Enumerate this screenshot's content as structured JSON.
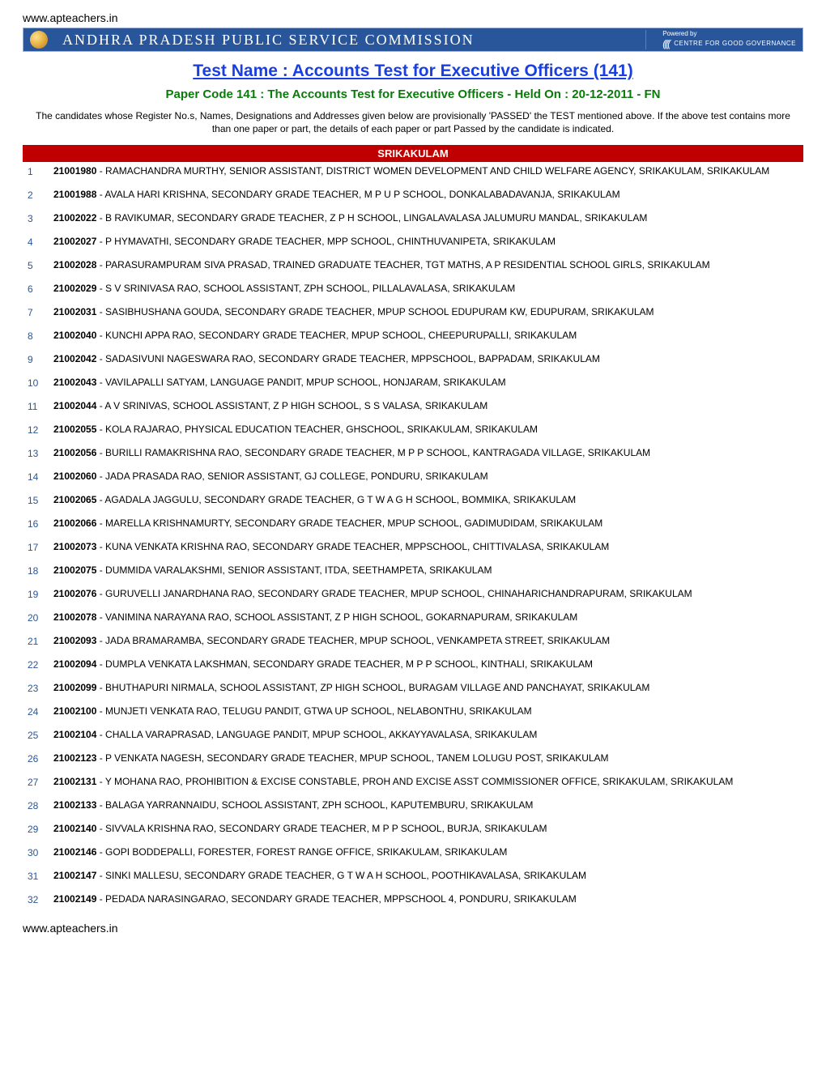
{
  "site_url": "www.apteachers.in",
  "banner": {
    "title": "ANDHRA PRADESH PUBLIC SERVICE COMMISSION",
    "powered_by": "Powered by",
    "cgg": "CENTRE FOR GOOD GOVERNANCE"
  },
  "test_name": "Test Name : Accounts Test for Executive Officers (141)",
  "paper_code": "Paper Code 141 : The Accounts Test for Executive Officers - Held On : 20-12-2011 - FN",
  "intro": "The candidates whose Register No.s, Names, Designations and Addresses given below are provisionally 'PASSED' the TEST mentioned above. If the above test contains more than one paper or part, the details of each paper or part Passed by the candidate is indicated.",
  "district": "SRIKAKULAM",
  "colors": {
    "banner_bg": "#29569b",
    "district_bg": "#c00000",
    "link": "#1a3fe0",
    "paper_code": "#0a7a0a",
    "row_number": "#29569b"
  },
  "rows": [
    {
      "n": 1,
      "reg": "21001980",
      "text": "RAMACHANDRA MURTHY, SENIOR ASSISTANT, DISTRICT WOMEN DEVELOPMENT AND CHILD WELFARE AGENCY, SRIKAKULAM, SRIKAKULAM",
      "tight": true
    },
    {
      "n": 2,
      "reg": "21001988",
      "text": "AVALA HARI KRISHNA, SECONDARY GRADE TEACHER, M P U P SCHOOL, DONKALABADAVANJA, SRIKAKULAM"
    },
    {
      "n": 3,
      "reg": "21002022",
      "text": "B RAVIKUMAR, SECONDARY GRADE TEACHER, Z P H SCHOOL, LINGALAVALASA JALUMURU MANDAL, SRIKAKULAM"
    },
    {
      "n": 4,
      "reg": "21002027",
      "text": "P HYMAVATHI, SECONDARY GRADE TEACHER, MPP SCHOOL, CHINTHUVANIPETA, SRIKAKULAM"
    },
    {
      "n": 5,
      "reg": "21002028",
      "text": "PARASURAMPURAM SIVA PRASAD, TRAINED GRADUATE TEACHER, TGT MATHS, A P RESIDENTIAL SCHOOL GIRLS, SRIKAKULAM"
    },
    {
      "n": 6,
      "reg": "21002029",
      "text": "S V SRINIVASA RAO, SCHOOL ASSISTANT, ZPH SCHOOL, PILLALAVALASA, SRIKAKULAM"
    },
    {
      "n": 7,
      "reg": "21002031",
      "text": "SASIBHUSHANA GOUDA, SECONDARY GRADE TEACHER, MPUP SCHOOL EDUPURAM KW, EDUPURAM, SRIKAKULAM"
    },
    {
      "n": 8,
      "reg": "21002040",
      "text": "KUNCHI APPA RAO, SECONDARY GRADE TEACHER, MPUP SCHOOL, CHEEPURUPALLI, SRIKAKULAM"
    },
    {
      "n": 9,
      "reg": "21002042",
      "text": "SADASIVUNI NAGESWARA RAO, SECONDARY GRADE TEACHER, MPPSCHOOL, BAPPADAM, SRIKAKULAM"
    },
    {
      "n": 10,
      "reg": "21002043",
      "text": "VAVILAPALLI SATYAM, LANGUAGE PANDIT, MPUP SCHOOL, HONJARAM, SRIKAKULAM"
    },
    {
      "n": 11,
      "reg": "21002044",
      "text": "A V SRINIVAS, SCHOOL ASSISTANT, Z P HIGH SCHOOL, S S VALASA, SRIKAKULAM"
    },
    {
      "n": 12,
      "reg": "21002055",
      "text": "KOLA RAJARAO, PHYSICAL EDUCATION TEACHER, GHSCHOOL, SRIKAKULAM, SRIKAKULAM"
    },
    {
      "n": 13,
      "reg": "21002056",
      "text": "BURILLI RAMAKRISHNA RAO, SECONDARY GRADE TEACHER, M P P SCHOOL, KANTRAGADA VILLAGE, SRIKAKULAM"
    },
    {
      "n": 14,
      "reg": "21002060",
      "text": "JADA PRASADA RAO, SENIOR ASSISTANT, GJ COLLEGE, PONDURU, SRIKAKULAM"
    },
    {
      "n": 15,
      "reg": "21002065",
      "text": "AGADALA JAGGULU, SECONDARY GRADE TEACHER, G T W A G H SCHOOL, BOMMIKA, SRIKAKULAM"
    },
    {
      "n": 16,
      "reg": "21002066",
      "text": "MARELLA KRISHNAMURTY, SECONDARY GRADE TEACHER, MPUP SCHOOL, GADIMUDIDAM, SRIKAKULAM"
    },
    {
      "n": 17,
      "reg": "21002073",
      "text": "KUNA VENKATA KRISHNA RAO, SECONDARY GRADE TEACHER, MPPSCHOOL, CHITTIVALASA, SRIKAKULAM"
    },
    {
      "n": 18,
      "reg": "21002075",
      "text": "DUMMIDA VARALAKSHMI, SENIOR ASSISTANT, ITDA, SEETHAMPETA, SRIKAKULAM"
    },
    {
      "n": 19,
      "reg": "21002076",
      "text": "GURUVELLI JANARDHANA RAO, SECONDARY GRADE TEACHER, MPUP SCHOOL, CHINAHARICHANDRAPURAM, SRIKAKULAM"
    },
    {
      "n": 20,
      "reg": "21002078",
      "text": "VANIMINA NARAYANA RAO, SCHOOL ASSISTANT, Z P HIGH SCHOOL, GOKARNAPURAM, SRIKAKULAM"
    },
    {
      "n": 21,
      "reg": "21002093",
      "text": "JADA BRAMARAMBA, SECONDARY GRADE TEACHER, MPUP SCHOOL, VENKAMPETA STREET, SRIKAKULAM"
    },
    {
      "n": 22,
      "reg": "21002094",
      "text": "DUMPLA VENKATA LAKSHMAN, SECONDARY GRADE TEACHER, M P P SCHOOL, KINTHALI, SRIKAKULAM"
    },
    {
      "n": 23,
      "reg": "21002099",
      "text": "BHUTHAPURI NIRMALA, SCHOOL ASSISTANT, ZP HIGH SCHOOL, BURAGAM VILLAGE AND PANCHAYAT, SRIKAKULAM"
    },
    {
      "n": 24,
      "reg": "21002100",
      "text": "MUNJETI VENKATA RAO, TELUGU PANDIT, GTWA UP SCHOOL, NELABONTHU, SRIKAKULAM"
    },
    {
      "n": 25,
      "reg": "21002104",
      "text": "CHALLA VARAPRASAD, LANGUAGE PANDIT, MPUP SCHOOL, AKKAYYAVALASA, SRIKAKULAM"
    },
    {
      "n": 26,
      "reg": "21002123",
      "text": "P VENKATA NAGESH, SECONDARY GRADE TEACHER, MPUP SCHOOL, TANEM LOLUGU POST, SRIKAKULAM"
    },
    {
      "n": 27,
      "reg": "21002131",
      "text": "Y MOHANA RAO, PROHIBITION & EXCISE CONSTABLE, PROH AND EXCISE ASST COMMISSIONER OFFICE, SRIKAKULAM, SRIKAKULAM",
      "tight": true
    },
    {
      "n": 28,
      "reg": "21002133",
      "text": "BALAGA YARRANNAIDU, SCHOOL ASSISTANT, ZPH SCHOOL, KAPUTEMBURU, SRIKAKULAM"
    },
    {
      "n": 29,
      "reg": "21002140",
      "text": "SIVVALA KRISHNA RAO, SECONDARY GRADE TEACHER, M P P SCHOOL, BURJA, SRIKAKULAM"
    },
    {
      "n": 30,
      "reg": "21002146",
      "text": "GOPI BODDEPALLI, FORESTER, FOREST RANGE OFFICE, SRIKAKULAM, SRIKAKULAM"
    },
    {
      "n": 31,
      "reg": "21002147",
      "text": "SINKI MALLESU, SECONDARY GRADE TEACHER, G T W A H SCHOOL, POOTHIKAVALASA, SRIKAKULAM"
    },
    {
      "n": 32,
      "reg": "21002149",
      "text": "PEDADA NARASINGARAO, SECONDARY GRADE TEACHER, MPPSCHOOL 4, PONDURU, SRIKAKULAM"
    }
  ]
}
